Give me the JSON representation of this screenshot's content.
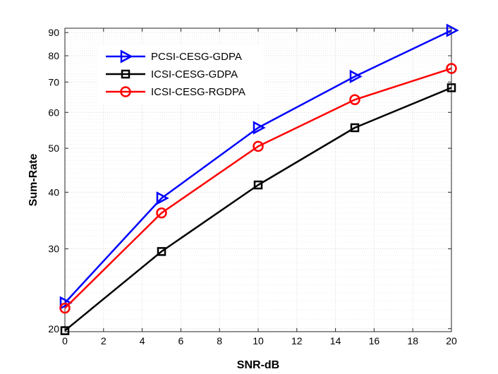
{
  "chart_data": {
    "type": "line",
    "xlabel": "SNR-dB",
    "ylabel": "Sum-Rate",
    "xlim": [
      0,
      20
    ],
    "ylim": [
      19.7,
      92
    ],
    "yscale": "log",
    "grid": true,
    "legend_position": "top-left",
    "x_ticks": [
      0,
      2,
      4,
      6,
      8,
      10,
      12,
      14,
      16,
      18,
      20
    ],
    "y_ticks": [
      20,
      30,
      40,
      50,
      60,
      70,
      80,
      90
    ],
    "x": [
      0,
      5,
      10,
      15,
      20
    ],
    "series": [
      {
        "name": "PCSI-CESG-GDPA",
        "color": "#0000ff",
        "marker": "triangle-right",
        "values": [
          22.8,
          38.8,
          55.5,
          72.0,
          91.0
        ]
      },
      {
        "name": "ICSI-CESG-GDPA",
        "color": "#000000",
        "marker": "square",
        "values": [
          19.8,
          29.6,
          41.5,
          55.5,
          68.0
        ]
      },
      {
        "name": "ICSI-CESG-RGDPA",
        "color": "#ff0000",
        "marker": "circle",
        "values": [
          22.2,
          36.0,
          50.5,
          64.0,
          75.0
        ]
      }
    ]
  }
}
